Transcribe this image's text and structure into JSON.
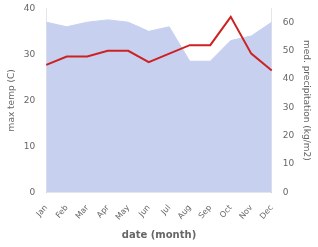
{
  "chart_data": {
    "type": "line",
    "x_label": "date (month)",
    "y_label": "max temp (C)",
    "y2_label": "med. precipitation (kg/m2)",
    "categories": [
      "Jan",
      "Feb",
      "Mar",
      "Apr",
      "May",
      "Jun",
      "Jul",
      "Aug",
      "Sep",
      "Oct",
      "Nov",
      "Dec"
    ],
    "series": [
      {
        "type": "area",
        "color": "#c8d0f0",
        "values": [
          37,
          36,
          37,
          37.5,
          37,
          35,
          36,
          28.5,
          28.5,
          33,
          34,
          37
        ]
      },
      {
        "type": "line",
        "color": "#cc2222",
        "axis": "y2",
        "values": [
          45,
          48,
          48,
          50,
          50,
          46,
          49,
          52,
          52,
          62,
          49,
          43
        ]
      }
    ],
    "ylim": [
      0,
      40
    ],
    "yticks": [
      0,
      10,
      20,
      30,
      40
    ],
    "y2lim": [
      0,
      65
    ],
    "y2ticks": [
      0,
      10,
      20,
      30,
      40,
      50,
      60
    ],
    "grid": false
  }
}
